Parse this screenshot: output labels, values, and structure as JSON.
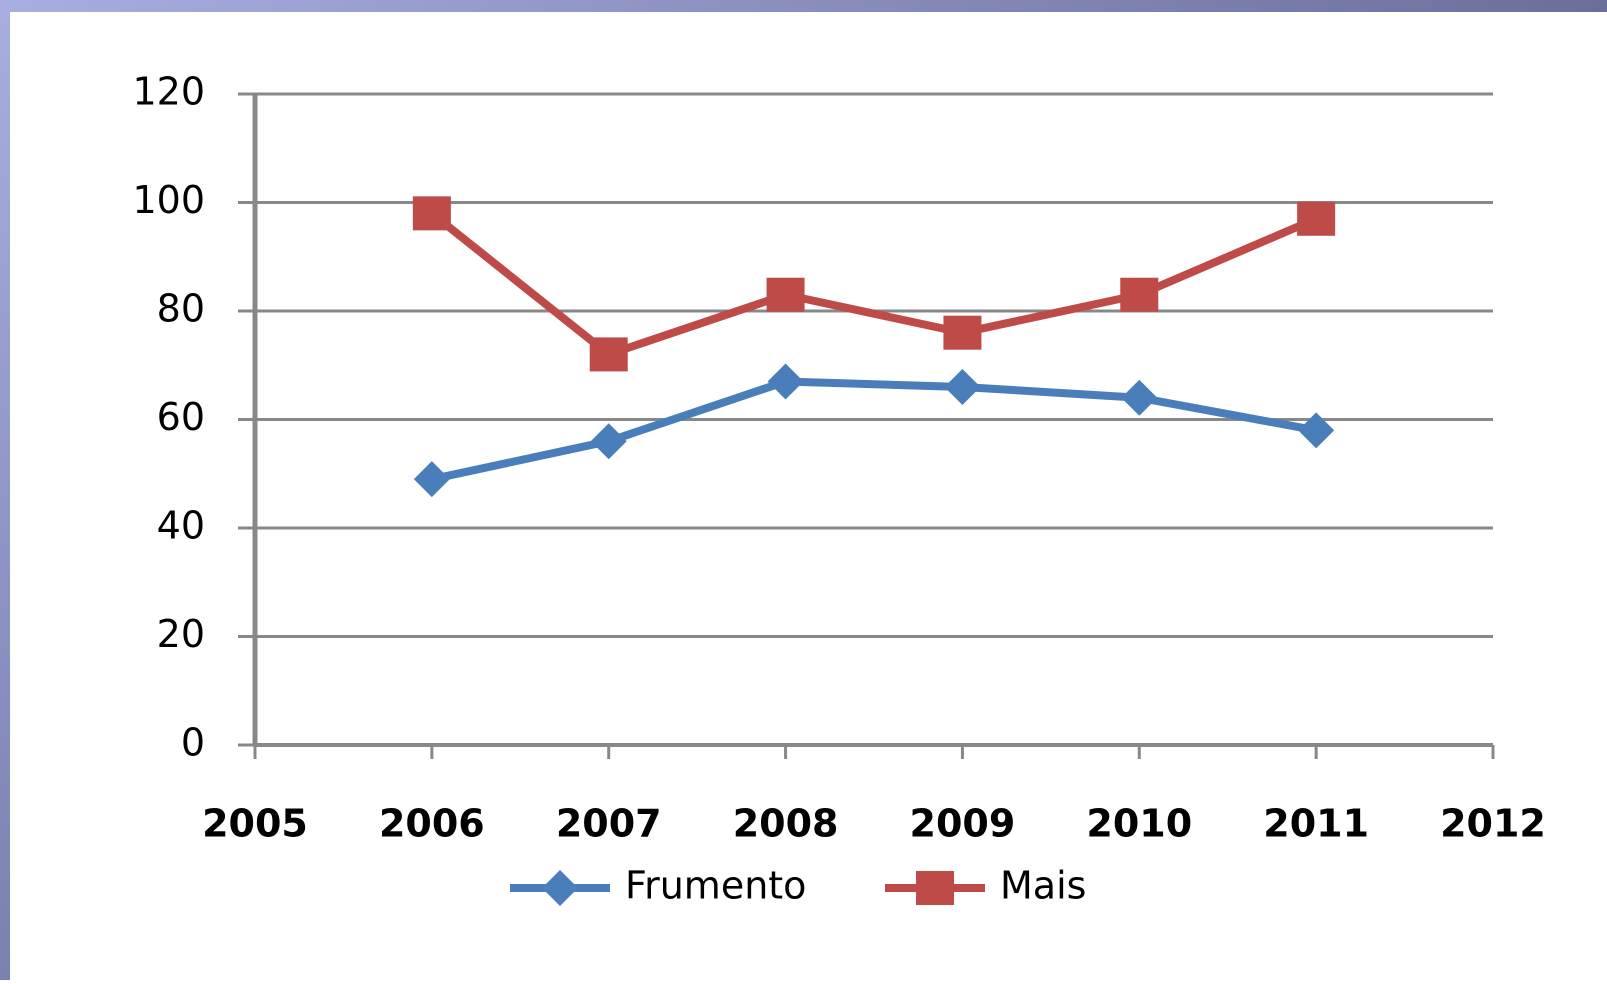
{
  "chart_data": {
    "type": "line",
    "x": [
      2006,
      2007,
      2008,
      2009,
      2010,
      2011
    ],
    "series": [
      {
        "name": "Frumento",
        "color": "#4a7ebb",
        "marker": "diamond",
        "values": [
          49,
          56,
          67,
          66,
          64,
          58
        ]
      },
      {
        "name": "Mais",
        "color": "#be4b48",
        "marker": "square",
        "values": [
          98,
          72,
          83,
          76,
          83,
          97
        ]
      }
    ],
    "xlim": [
      2005,
      2012
    ],
    "xticks": [
      2005,
      2006,
      2007,
      2008,
      2009,
      2010,
      2011,
      2012
    ],
    "ylim": [
      0,
      120
    ],
    "yticks": [
      0,
      20,
      40,
      60,
      80,
      100,
      120
    ],
    "grid": true,
    "legend": "bottom"
  }
}
